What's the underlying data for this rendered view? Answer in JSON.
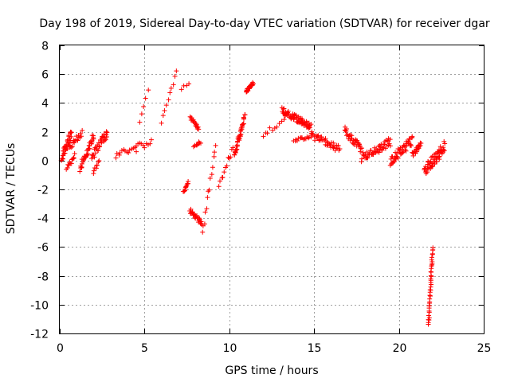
{
  "chart_data": {
    "type": "scatter",
    "title": "Day 198 of 2019, Sidereal Day-to-day VTEC variation (SDTVAR) for receiver dgar",
    "xlabel": "GPS time / hours",
    "ylabel": "SDTVAR / TECUs",
    "xlim": [
      0,
      25
    ],
    "ylim": [
      -12,
      8
    ],
    "grid": true,
    "marker": "+",
    "color": "#ff0000",
    "xticks": [
      0,
      5,
      10,
      15,
      20,
      25
    ],
    "yticks": [
      -12,
      -10,
      -8,
      -6,
      -4,
      -2,
      0,
      2,
      4,
      6,
      8
    ],
    "xtick_labels": [
      "0",
      "5",
      "10",
      "15",
      "20",
      "25"
    ],
    "ytick_labels": [
      "-12",
      "-10",
      "-8",
      "-6",
      "-4",
      "-2",
      "0",
      "2",
      "4",
      "6",
      "8"
    ],
    "clusters": [
      {
        "name": "arc-0.0-0.7",
        "x0": 0.1,
        "x1": 0.7,
        "y0": 0.3,
        "y1": 1.8,
        "n": 40,
        "spread": 0.7
      },
      {
        "name": "arc-0.6-1.3",
        "x0": 0.6,
        "x1": 1.3,
        "y0": 1.0,
        "y1": 1.9,
        "n": 18,
        "spread": 0.4
      },
      {
        "name": "arc-0.4-0.8-dip",
        "x0": 0.4,
        "x1": 0.9,
        "y0": -0.6,
        "y1": 0.4,
        "n": 12,
        "spread": 0.3
      },
      {
        "name": "arc-1.2-2.0",
        "x0": 1.2,
        "x1": 2.0,
        "y0": -0.5,
        "y1": 1.7,
        "n": 35,
        "spread": 0.6
      },
      {
        "name": "arc-1.8-2.8",
        "x0": 1.9,
        "x1": 2.8,
        "y0": 0.3,
        "y1": 1.9,
        "n": 35,
        "spread": 0.6
      },
      {
        "name": "arc-2.0-2.3-low",
        "x0": 2.0,
        "x1": 2.3,
        "y0": -0.8,
        "y1": 0.0,
        "n": 8,
        "spread": 0.2
      },
      {
        "name": "arc-3.3-4.5",
        "x0": 3.3,
        "x1": 4.5,
        "y0": 0.3,
        "y1": 1.0,
        "n": 14,
        "spread": 0.5
      },
      {
        "name": "arc-4.5-5.4",
        "x0": 4.5,
        "x1": 5.4,
        "y0": 0.8,
        "y1": 1.5,
        "n": 10,
        "spread": 0.6
      },
      {
        "name": "arc-4.7-5.2-up",
        "x0": 4.7,
        "x1": 5.2,
        "y0": 2.7,
        "y1": 4.9,
        "n": 5,
        "spread": 0.2
      },
      {
        "name": "arc-6.0-6.9",
        "x0": 6.0,
        "x1": 6.9,
        "y0": 2.7,
        "y1": 6.1,
        "n": 10,
        "spread": 0.3
      },
      {
        "name": "arc-7.2-7.6",
        "x0": 7.2,
        "x1": 7.6,
        "y0": 5.0,
        "y1": 5.3,
        "n": 4,
        "spread": 0.2
      },
      {
        "name": "arc-7.3-7.6-neg",
        "x0": 7.3,
        "x1": 7.6,
        "y0": -2.1,
        "y1": -1.5,
        "n": 12,
        "spread": 0.2
      },
      {
        "name": "arc-7.7-8.4-neg",
        "x0": 7.7,
        "x1": 8.4,
        "y0": -3.5,
        "y1": -4.4,
        "n": 30,
        "spread": 0.4
      },
      {
        "name": "arc-7.7-8.2-pos",
        "x0": 7.7,
        "x1": 8.2,
        "y0": 3.0,
        "y1": 2.2,
        "n": 18,
        "spread": 0.3
      },
      {
        "name": "arc-7.9-8.2-mid",
        "x0": 7.9,
        "x1": 8.3,
        "y0": 1.0,
        "y1": 1.3,
        "n": 10,
        "spread": 0.2
      },
      {
        "name": "arc-8.4-9.2-mix",
        "x0": 8.4,
        "x1": 9.2,
        "y0": -5.2,
        "y1": 1.1,
        "n": 14,
        "spread": 0.5
      },
      {
        "name": "arc-9.4-10.2",
        "x0": 9.4,
        "x1": 10.2,
        "y0": -1.8,
        "y1": 1.0,
        "n": 12,
        "spread": 0.5
      },
      {
        "name": "arc-10.3-10.9-up",
        "x0": 10.3,
        "x1": 10.9,
        "y0": 0.3,
        "y1": 3.1,
        "n": 40,
        "spread": 0.4
      },
      {
        "name": "arc-11.0-11.4-up",
        "x0": 11.0,
        "x1": 11.4,
        "y0": 4.8,
        "y1": 5.4,
        "n": 25,
        "spread": 0.2
      },
      {
        "name": "arc-12.0-13.2",
        "x0": 12.0,
        "x1": 13.2,
        "y0": 1.8,
        "y1": 2.8,
        "n": 10,
        "spread": 0.3
      },
      {
        "name": "arc-13.0-14.8",
        "x0": 13.1,
        "x1": 14.8,
        "y0": 3.5,
        "y1": 2.3,
        "n": 70,
        "spread": 0.5
      },
      {
        "name": "arc-13.8-14.8-low",
        "x0": 13.8,
        "x1": 14.8,
        "y0": 1.4,
        "y1": 1.7,
        "n": 15,
        "spread": 0.2
      },
      {
        "name": "arc-14.8-16.5",
        "x0": 14.8,
        "x1": 16.5,
        "y0": 1.8,
        "y1": 0.8,
        "n": 45,
        "spread": 0.5
      },
      {
        "name": "arc-16.8-17.8",
        "x0": 16.8,
        "x1": 17.8,
        "y0": 2.1,
        "y1": 0.8,
        "n": 35,
        "spread": 0.6
      },
      {
        "name": "arc-17.8-19.5",
        "x0": 17.8,
        "x1": 19.5,
        "y0": 0.2,
        "y1": 1.3,
        "n": 55,
        "spread": 0.6
      },
      {
        "name": "arc-19.5-20.8",
        "x0": 19.5,
        "x1": 20.8,
        "y0": 0.0,
        "y1": 1.4,
        "n": 50,
        "spread": 0.7
      },
      {
        "name": "arc-20.8-21.3",
        "x0": 20.8,
        "x1": 21.3,
        "y0": 0.4,
        "y1": 1.2,
        "n": 20,
        "spread": 0.4
      },
      {
        "name": "arc-21.5-22.7",
        "x0": 21.5,
        "x1": 22.7,
        "y0": -0.8,
        "y1": 1.0,
        "n": 60,
        "spread": 0.8
      },
      {
        "name": "arc-21.7-22.0-dive",
        "x0": 21.75,
        "x1": 21.98,
        "y0": -11.4,
        "y1": -6.0,
        "n": 40,
        "spread": 0.15
      }
    ]
  }
}
